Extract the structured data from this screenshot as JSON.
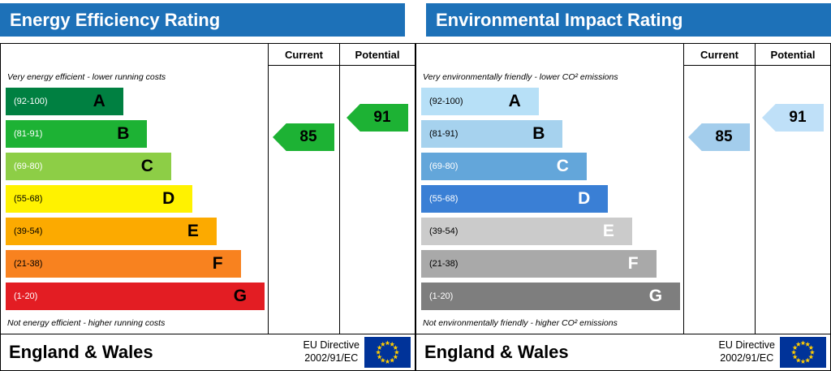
{
  "theme": {
    "header_bg": "#1d71b8",
    "header_text": "#ffffff",
    "border": "#000000",
    "eu_flag_bg": "#003399",
    "eu_star": "#ffcc00"
  },
  "chart_data": [
    {
      "type": "bar",
      "title": "Energy Efficiency Rating",
      "categories": [
        "A",
        "B",
        "C",
        "D",
        "E",
        "F",
        "G"
      ],
      "band_ranges": [
        "92-100",
        "81-91",
        "69-80",
        "55-68",
        "39-54",
        "21-38",
        "1-20"
      ],
      "bar_lengths_pct": [
        44,
        53,
        62,
        70,
        79,
        88,
        97
      ],
      "current": 85,
      "potential": 91,
      "columns": [
        "Current",
        "Potential"
      ],
      "top_note": "Very energy efficient - lower running costs",
      "bottom_note": "Not energy efficient - higher running costs"
    },
    {
      "type": "bar",
      "title": "Environmental Impact Rating",
      "categories": [
        "A",
        "B",
        "C",
        "D",
        "E",
        "F",
        "G"
      ],
      "band_ranges": [
        "92-100",
        "81-91",
        "69-80",
        "55-68",
        "39-54",
        "21-38",
        "1-20"
      ],
      "bar_lengths_pct": [
        44,
        53,
        62,
        70,
        79,
        88,
        97
      ],
      "current": 85,
      "potential": 91,
      "columns": [
        "Current",
        "Potential"
      ],
      "top_note": "Very environmentally friendly - lower CO² emissions",
      "bottom_note": "Not environmentally friendly - higher CO² emissions"
    }
  ],
  "panels": [
    {
      "id": "energy",
      "title": "Energy Efficiency Rating",
      "col_current": "Current",
      "col_potential": "Potential",
      "top_note": "Very energy efficient - lower running costs",
      "bottom_note": "Not energy efficient - higher running costs",
      "bands": [
        {
          "letter": "A",
          "range": "(92-100)",
          "min": 92,
          "max": 100,
          "color": "#008041",
          "width_pct": 44,
          "range_color": "#ffffff",
          "letter_color": "#000000"
        },
        {
          "letter": "B",
          "range": "(81-91)",
          "min": 81,
          "max": 91,
          "color": "#1db234",
          "width_pct": 53,
          "range_color": "#ffffff",
          "letter_color": "#000000"
        },
        {
          "letter": "C",
          "range": "(69-80)",
          "min": 69,
          "max": 80,
          "color": "#8dce46",
          "width_pct": 62,
          "range_color": "#ffffff",
          "letter_color": "#000000"
        },
        {
          "letter": "D",
          "range": "(55-68)",
          "min": 55,
          "max": 68,
          "color": "#fff200",
          "width_pct": 70,
          "range_color": "#000000",
          "letter_color": "#000000"
        },
        {
          "letter": "E",
          "range": "(39-54)",
          "min": 39,
          "max": 54,
          "color": "#fcaa00",
          "width_pct": 79,
          "range_color": "#000000",
          "letter_color": "#000000"
        },
        {
          "letter": "F",
          "range": "(21-38)",
          "min": 21,
          "max": 38,
          "color": "#f8821f",
          "width_pct": 88,
          "range_color": "#000000",
          "letter_color": "#000000"
        },
        {
          "letter": "G",
          "range": "(1-20)",
          "min": 1,
          "max": 20,
          "color": "#e31d23",
          "width_pct": 97,
          "range_color": "#ffffff",
          "letter_color": "#000000"
        }
      ],
      "current": {
        "value": 85,
        "display": "85",
        "color": "#1db234",
        "text_color": "#000000"
      },
      "potential": {
        "value": 91,
        "display": "91",
        "color": "#1db234",
        "text_color": "#000000"
      },
      "footer": {
        "region": "England & Wales",
        "directive_line1": "EU Directive",
        "directive_line2": "2002/91/EC"
      }
    },
    {
      "id": "environment",
      "title": "Environmental Impact Rating",
      "col_current": "Current",
      "col_potential": "Potential",
      "top_note": "Very environmentally friendly - lower CO² emissions",
      "bottom_note": "Not environmentally friendly - higher CO² emissions",
      "bands": [
        {
          "letter": "A",
          "range": "(92-100)",
          "min": 92,
          "max": 100,
          "color": "#b7e0f7",
          "width_pct": 44,
          "range_color": "#000000",
          "letter_color": "#000000"
        },
        {
          "letter": "B",
          "range": "(81-91)",
          "min": 81,
          "max": 91,
          "color": "#a6d2ee",
          "width_pct": 53,
          "range_color": "#000000",
          "letter_color": "#000000"
        },
        {
          "letter": "C",
          "range": "(69-80)",
          "min": 69,
          "max": 80,
          "color": "#63a6da",
          "width_pct": 62,
          "range_color": "#ffffff",
          "letter_color": "#ffffff"
        },
        {
          "letter": "D",
          "range": "(55-68)",
          "min": 55,
          "max": 68,
          "color": "#3a7fd5",
          "width_pct": 70,
          "range_color": "#ffffff",
          "letter_color": "#ffffff"
        },
        {
          "letter": "E",
          "range": "(39-54)",
          "min": 39,
          "max": 54,
          "color": "#cbcbcb",
          "width_pct": 79,
          "range_color": "#000000",
          "letter_color": "#ffffff"
        },
        {
          "letter": "F",
          "range": "(21-38)",
          "min": 21,
          "max": 38,
          "color": "#a9a9a9",
          "width_pct": 88,
          "range_color": "#000000",
          "letter_color": "#ffffff"
        },
        {
          "letter": "G",
          "range": "(1-20)",
          "min": 1,
          "max": 20,
          "color": "#7e7e7e",
          "width_pct": 97,
          "range_color": "#ffffff",
          "letter_color": "#ffffff"
        }
      ],
      "current": {
        "value": 85,
        "display": "85",
        "color": "#a3cdec",
        "text_color": "#000000"
      },
      "potential": {
        "value": 91,
        "display": "91",
        "color": "#bfe0f8",
        "text_color": "#000000"
      },
      "footer": {
        "region": "England & Wales",
        "directive_line1": "EU Directive",
        "directive_line2": "2002/91/EC"
      }
    }
  ]
}
